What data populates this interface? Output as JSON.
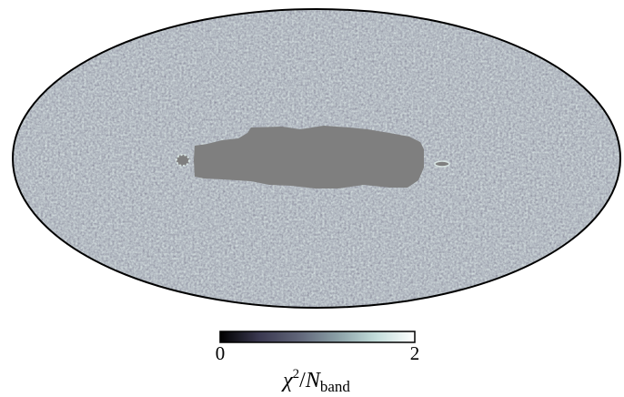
{
  "map": {
    "projection": "mollweide",
    "colormap": [
      "#000000",
      "#3a3850",
      "#5f6478",
      "#8a9fa6",
      "#c2dcda",
      "#ffffff"
    ],
    "masked_color": "#7f7f7f",
    "outline_color": "#000000"
  },
  "colorbar": {
    "min_label": "0",
    "max_label": "2",
    "min": 0,
    "max": 2,
    "label_symbol": "χ",
    "label_exponent": "2",
    "label_slash": "/",
    "label_N": "N",
    "label_subscript": "band"
  }
}
